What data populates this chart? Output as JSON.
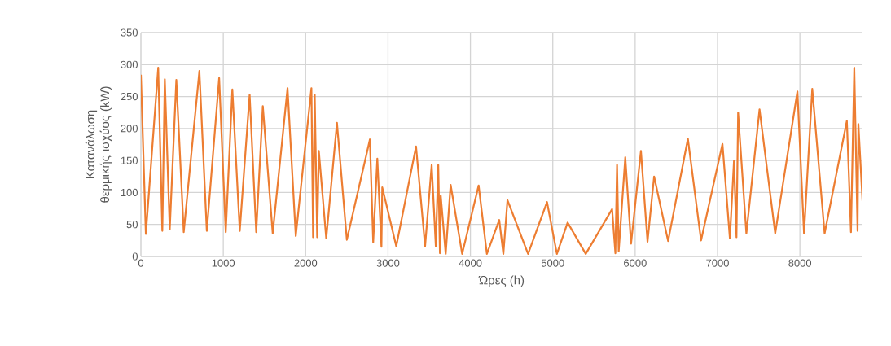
{
  "chart_data": {
    "type": "line",
    "xlabel": "Ώρες (h)",
    "ylabel": "Κατανάλωση θερμικής ισχύος (kW)",
    "xlim": [
      0,
      8760
    ],
    "xticks": [
      0,
      1000,
      2000,
      3000,
      4000,
      5000,
      6000,
      7000,
      8000
    ],
    "ylim": [
      0,
      350
    ],
    "yticks": [
      0,
      50,
      100,
      150,
      200,
      250,
      300,
      350
    ],
    "grid": true,
    "marker": "none",
    "line_style": "solid",
    "series": [
      {
        "color": "#ed7d31",
        "x": [
          0,
          60,
          210,
          260,
          290,
          350,
          430,
          520,
          710,
          800,
          950,
          1030,
          1110,
          1200,
          1320,
          1400,
          1480,
          1600,
          1780,
          1880,
          2070,
          2090,
          2110,
          2140,
          2160,
          2250,
          2380,
          2500,
          2780,
          2820,
          2870,
          2920,
          2930,
          3100,
          3340,
          3450,
          3530,
          3580,
          3610,
          3630,
          3640,
          3700,
          3760,
          3900,
          4100,
          4200,
          4350,
          4400,
          4450,
          4700,
          4930,
          5050,
          5180,
          5400,
          5720,
          5760,
          5780,
          5800,
          5880,
          5950,
          6070,
          6150,
          6230,
          6400,
          6640,
          6800,
          7060,
          7150,
          7200,
          7230,
          7250,
          7350,
          7510,
          7700,
          7970,
          8050,
          8150,
          8300,
          8570,
          8620,
          8660,
          8700,
          8710,
          8760
        ],
        "values": [
          284,
          35,
          295,
          40,
          277,
          42,
          276,
          38,
          290,
          40,
          279,
          38,
          261,
          40,
          253,
          38,
          235,
          36,
          263,
          32,
          263,
          30,
          253,
          30,
          165,
          28,
          209,
          26,
          183,
          22,
          153,
          15,
          108,
          16,
          172,
          16,
          143,
          16,
          143,
          5,
          95,
          4,
          112,
          4,
          111,
          4,
          57,
          4,
          88,
          4,
          85,
          4,
          53,
          4,
          74,
          5,
          143,
          8,
          155,
          20,
          165,
          23,
          125,
          24,
          184,
          25,
          176,
          28,
          150,
          30,
          225,
          36,
          230,
          36,
          258,
          36,
          262,
          36,
          212,
          38,
          295,
          40,
          207,
          87
        ]
      }
    ]
  }
}
